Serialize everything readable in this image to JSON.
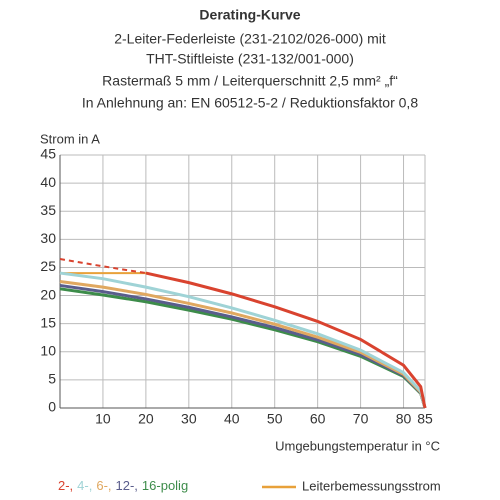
{
  "chart_data": {
    "type": "line",
    "title": "Derating-Kurve",
    "subtitle": [
      "2-Leiter-Federleiste (231-2102/026-000) mit",
      "THT-Stiftleiste (231-132/001-000)",
      "Rastermaß 5 mm / Leiterquerschnitt 2,5 mm² „f“",
      "In Anlehnung an: EN 60512-5-2 / Reduktionsfaktor 0,8"
    ],
    "y_label": "Strom in A",
    "x_label": "Umgebungstemperatur in °C",
    "x": [
      0,
      10,
      20,
      30,
      40,
      50,
      60,
      70,
      80,
      84,
      85
    ],
    "xlim": [
      0,
      85
    ],
    "xticks": [
      10,
      20,
      30,
      40,
      50,
      60,
      70,
      80,
      85
    ],
    "ylim": [
      0,
      45
    ],
    "yticks": [
      0,
      5,
      10,
      15,
      20,
      25,
      30,
      35,
      40,
      45
    ],
    "grid": true,
    "dashed_below": 20,
    "series": [
      {
        "name": "2-,",
        "color": "#d9432f",
        "values": [
          26.5,
          25.2,
          24,
          22.3,
          20.3,
          18,
          15.4,
          12.2,
          7.6,
          3.8,
          0
        ]
      },
      {
        "name": "4-,",
        "color": "#9fd3d6",
        "values": [
          24,
          23,
          21.5,
          19.8,
          17.8,
          15.6,
          13.2,
          10.3,
          6.3,
          3,
          0
        ]
      },
      {
        "name": "6-,",
        "color": "#e0a860",
        "values": [
          22.5,
          21.5,
          20.2,
          18.6,
          16.9,
          14.9,
          12.6,
          9.9,
          6,
          2.8,
          0
        ]
      },
      {
        "name": "12-,",
        "color": "#5a5d8c",
        "values": [
          21.8,
          20.7,
          19.4,
          17.9,
          16.2,
          14.3,
          12.1,
          9.5,
          5.8,
          2.7,
          0
        ]
      },
      {
        "name": "16-polig",
        "color": "#3d8c4a",
        "values": [
          21.2,
          20.1,
          18.9,
          17.4,
          15.8,
          13.9,
          11.8,
          9.2,
          5.6,
          2.6,
          0
        ]
      }
    ],
    "rated_current": {
      "name": "Leiterbemessungsstrom",
      "color": "#e8a13a",
      "values": [
        24,
        24,
        24,
        null,
        null,
        null,
        null,
        null,
        null,
        null,
        null
      ]
    }
  }
}
